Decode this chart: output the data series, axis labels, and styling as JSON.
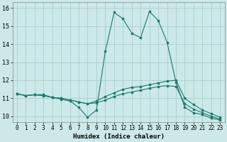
{
  "xlabel": "Humidex (Indice chaleur)",
  "bg_color": "#cce8e8",
  "grid_color": "#aacece",
  "line_color": "#1a7a6e",
  "xlim": [
    -0.5,
    23.5
  ],
  "ylim": [
    9.7,
    16.3
  ],
  "yticks": [
    10,
    11,
    12,
    13,
    14,
    15,
    16
  ],
  "xticks": [
    0,
    1,
    2,
    3,
    4,
    5,
    6,
    7,
    8,
    9,
    10,
    11,
    12,
    13,
    14,
    15,
    16,
    17,
    18,
    19,
    20,
    21,
    22,
    23
  ],
  "line1_x": [
    0,
    1,
    2,
    3,
    4,
    5,
    6,
    7,
    8,
    9,
    10,
    11,
    12,
    13,
    14,
    15,
    16,
    17,
    18,
    19,
    20,
    21,
    22,
    23
  ],
  "line1_y": [
    11.25,
    11.15,
    11.2,
    11.2,
    11.05,
    10.95,
    10.85,
    10.5,
    9.95,
    10.35,
    13.6,
    15.75,
    15.4,
    14.6,
    14.35,
    15.8,
    15.3,
    14.1,
    11.9,
    10.5,
    10.2,
    10.1,
    9.9,
    9.8
  ],
  "line2_x": [
    0,
    1,
    2,
    3,
    4,
    5,
    6,
    7,
    8,
    9,
    10,
    11,
    12,
    13,
    14,
    15,
    16,
    17,
    18,
    19,
    20,
    21,
    22,
    23
  ],
  "line2_y": [
    11.25,
    11.15,
    11.2,
    11.15,
    11.05,
    11.0,
    10.9,
    10.8,
    10.7,
    10.85,
    11.1,
    11.3,
    11.5,
    11.6,
    11.65,
    11.75,
    11.85,
    11.95,
    12.0,
    11.0,
    10.65,
    10.35,
    10.15,
    9.95
  ],
  "line3_x": [
    0,
    1,
    2,
    3,
    4,
    5,
    6,
    7,
    8,
    9,
    10,
    11,
    12,
    13,
    14,
    15,
    16,
    17,
    18,
    19,
    20,
    21,
    22,
    23
  ],
  "line3_y": [
    11.25,
    11.15,
    11.2,
    11.15,
    11.05,
    11.0,
    10.9,
    10.8,
    10.7,
    10.75,
    10.9,
    11.1,
    11.25,
    11.35,
    11.45,
    11.55,
    11.65,
    11.7,
    11.65,
    10.7,
    10.4,
    10.2,
    10.0,
    9.85
  ]
}
